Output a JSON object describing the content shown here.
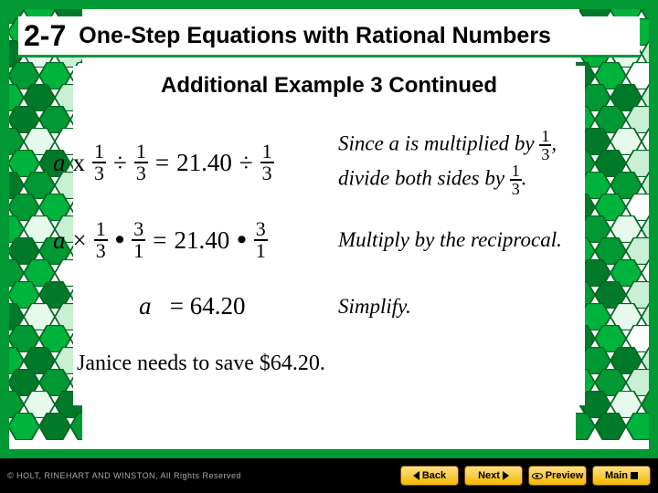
{
  "header": {
    "chapter": "2-7",
    "title": "One-Step Equations with Rational Numbers"
  },
  "subtitle": "Additional Example 3 Continued",
  "colors": {
    "accent": "#009933",
    "bg": "#ffffff",
    "btn_grad_top": "#ffe08a",
    "btn_grad_bot": "#f6b800"
  },
  "step1": {
    "lhs_var": "a",
    "op_x": "x",
    "f1": {
      "n": "1",
      "d": "3"
    },
    "div": "÷",
    "f2": {
      "n": "1",
      "d": "3"
    },
    "eq": "=",
    "val": "21.40",
    "div2": "÷",
    "f3": {
      "n": "1",
      "d": "3"
    },
    "explain_pre": "Since a is multiplied by ",
    "ef1": {
      "n": "1",
      "d": "3"
    },
    "comma": ",",
    "explain_mid": "divide both sides by ",
    "ef2": {
      "n": "1",
      "d": "3"
    },
    "period": "."
  },
  "step2": {
    "lhs_var": "a",
    "times": "×",
    "f1": {
      "n": "1",
      "d": "3"
    },
    "dot": "•",
    "f2": {
      "n": "3",
      "d": "1"
    },
    "eq": "=",
    "val": "21.40",
    "dot2": "•",
    "f3": {
      "n": "3",
      "d": "1"
    },
    "explain": "Multiply by the reciprocal."
  },
  "step3": {
    "var": "a",
    "eq": "=",
    "val": "64.20",
    "explain": "Simplify."
  },
  "conclusion": "Janice needs to save $64.20.",
  "footer": {
    "copyright": "© HOLT, RINEHART AND WINSTON, All Rights Reserved",
    "buttons": {
      "back": "Back",
      "next": "Next",
      "preview": "Preview",
      "main": "Main"
    }
  }
}
